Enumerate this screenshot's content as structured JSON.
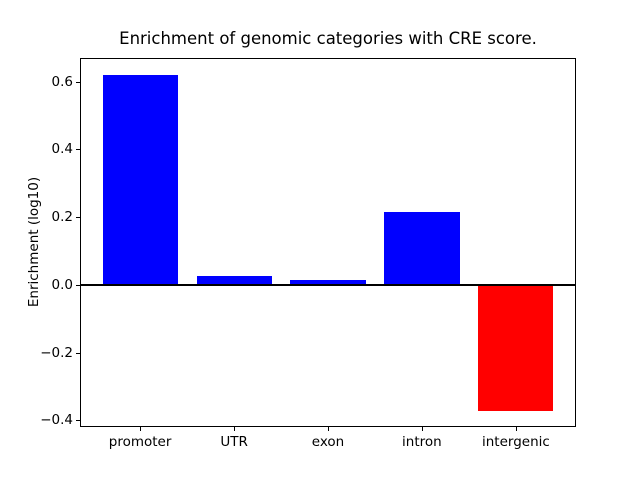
{
  "chart_data": {
    "type": "bar",
    "title": "Enrichment of genomic categories with CRE score.",
    "ylabel": "Enrichment (log10)",
    "xlabel": "",
    "categories": [
      "promoter",
      "UTR",
      "exon",
      "intron",
      "intergenic"
    ],
    "values": [
      0.62,
      0.027,
      0.013,
      0.215,
      -0.372
    ],
    "bar_colors": [
      "#0000ff",
      "#0000ff",
      "#0000ff",
      "#0000ff",
      "#ff0000"
    ],
    "positive_color": "#0000ff",
    "negative_color": "#ff0000",
    "yticks": [
      0.6,
      0.4,
      0.2,
      0.0,
      -0.2,
      -0.4
    ],
    "ytick_labels": [
      "0.6",
      "0.4",
      "0.2",
      "0.0",
      "−0.2",
      "−0.4"
    ],
    "ylim": [
      -0.42,
      0.67
    ],
    "xlim": [
      -0.64,
      4.64
    ],
    "bar_width": 0.8,
    "grid": false,
    "legend": null,
    "zero_line": true,
    "axis_color": "#000000",
    "background_color": "#ffffff"
  }
}
